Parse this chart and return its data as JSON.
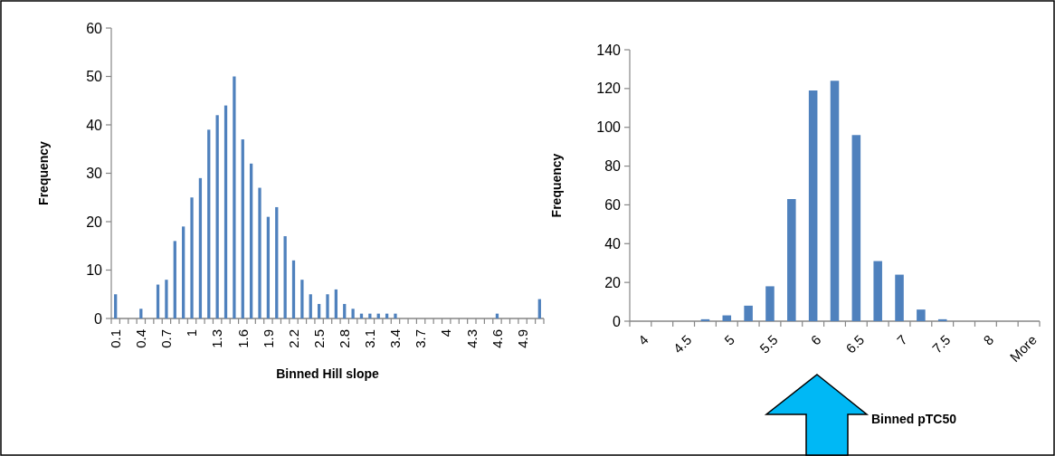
{
  "chart_data": [
    {
      "type": "bar",
      "xlabel": "Binned Hill slope",
      "ylabel": "Frequency",
      "categories": [
        "0.1",
        null,
        null,
        "0.4",
        null,
        null,
        "0.7",
        null,
        null,
        "1",
        null,
        null,
        "1.3",
        null,
        null,
        "1.6",
        null,
        null,
        "1.9",
        null,
        null,
        "2.2",
        null,
        null,
        "2.5",
        null,
        null,
        "2.8",
        null,
        null,
        "3.1",
        null,
        null,
        "3.4",
        null,
        null,
        "3.7",
        null,
        null,
        "4",
        null,
        null,
        "4.3",
        null,
        null,
        "4.6",
        null,
        null,
        "4.9",
        null,
        null
      ],
      "values": [
        5,
        0,
        0,
        2,
        0,
        7,
        8,
        16,
        19,
        25,
        29,
        39,
        42,
        44,
        50,
        37,
        32,
        27,
        21,
        23,
        17,
        12,
        8,
        5,
        3,
        5,
        6,
        3,
        2,
        1,
        1,
        1,
        1,
        1,
        0,
        0,
        0,
        0,
        0,
        0,
        0,
        0,
        0,
        0,
        0,
        1,
        0,
        0,
        0,
        0,
        4
      ],
      "color": "#4f81bd",
      "ylim": [
        0,
        60
      ],
      "yticks": [
        0,
        10,
        20,
        30,
        40,
        50,
        60
      ],
      "grid": false
    },
    {
      "type": "bar",
      "xlabel": "Binned pTC50",
      "ylabel": "Frequency",
      "categories": [
        "4",
        null,
        "4.5",
        null,
        "5",
        null,
        "5.5",
        null,
        "6",
        null,
        "6.5",
        null,
        "7",
        null,
        "7.5",
        null,
        "8",
        null,
        "More"
      ],
      "values": [
        0,
        0,
        0,
        1,
        3,
        8,
        18,
        63,
        119,
        124,
        96,
        31,
        24,
        6,
        1,
        0,
        0,
        0,
        0
      ],
      "color": "#4f81bd",
      "ylim": [
        0,
        140
      ],
      "yticks": [
        0,
        20,
        40,
        60,
        80,
        100,
        120,
        140
      ],
      "grid": false
    }
  ]
}
